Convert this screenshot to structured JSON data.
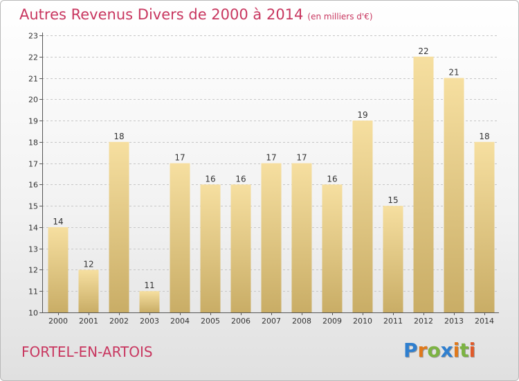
{
  "title": "Autres Revenus Divers de 2000 à 2014",
  "subtitle": "(en milliers d'€)",
  "place": "FORTEL-EN-ARTOIS",
  "logo": {
    "letters": [
      "P",
      "r",
      "o",
      "x",
      "i",
      "t",
      "i"
    ],
    "colors": [
      "#2f7fcf",
      "#e0791b",
      "#7cb342",
      "#2f7fcf",
      "#e0791b",
      "#7cb342",
      "#e05a2a"
    ]
  },
  "colors": {
    "bar_light": "#f6dfa0",
    "bar_dark": "#c9ad66",
    "title": "#c8365f"
  },
  "chart_data": {
    "type": "bar",
    "categories": [
      "2000",
      "2001",
      "2002",
      "2003",
      "2004",
      "2005",
      "2006",
      "2007",
      "2008",
      "2009",
      "2010",
      "2011",
      "2012",
      "2013",
      "2014"
    ],
    "values": [
      14,
      12,
      18,
      11,
      17,
      16,
      16,
      17,
      17,
      16,
      19,
      15,
      22,
      21,
      18
    ],
    "ylim": [
      10,
      23
    ],
    "yticks": [
      10,
      11,
      12,
      13,
      14,
      15,
      16,
      17,
      18,
      19,
      20,
      21,
      22,
      23
    ],
    "grid": true,
    "xlabel": "",
    "ylabel": ""
  }
}
